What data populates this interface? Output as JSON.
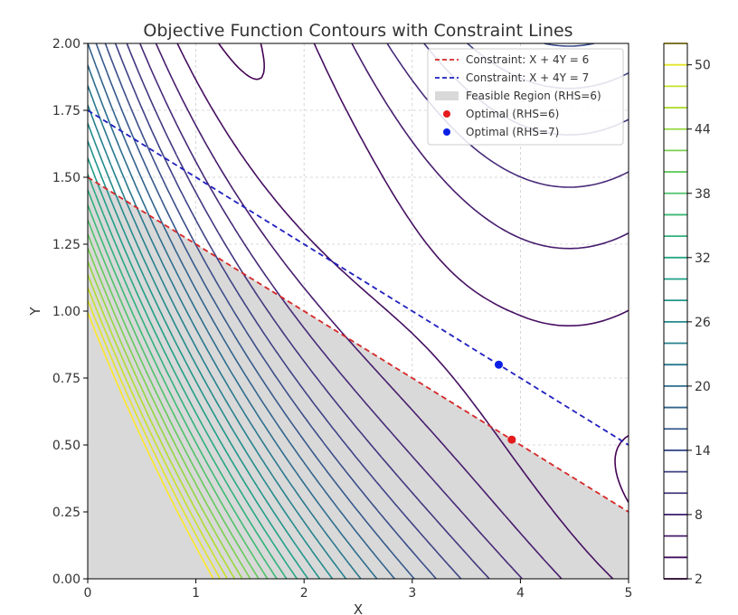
{
  "chart_data": {
    "type": "contour",
    "title": "Objective Function Contours with Constraint Lines",
    "xlabel": "X",
    "ylabel": "Y",
    "xlim": [
      0,
      5
    ],
    "ylim": [
      0,
      2
    ],
    "xticks": [
      0,
      1,
      2,
      3,
      4,
      5
    ],
    "yticks": [
      0.0,
      0.25,
      0.5,
      0.75,
      1.0,
      1.25,
      1.5,
      1.75,
      2.0
    ],
    "ytick_labels": [
      "0.00",
      "0.25",
      "0.50",
      "0.75",
      "1.00",
      "1.25",
      "1.50",
      "1.75",
      "2.00"
    ],
    "grid": true,
    "legend_position": "top-right",
    "contour_levels": [
      2,
      4,
      6,
      8,
      10,
      12,
      14,
      16,
      18,
      20,
      22,
      24,
      26,
      28,
      30,
      32,
      34,
      36,
      38,
      40,
      42,
      44,
      46,
      48,
      50,
      52
    ],
    "colorbar": {
      "min": 2,
      "max": 52,
      "ticks": [
        2,
        8,
        14,
        20,
        26,
        32,
        38,
        44,
        50
      ],
      "colormap": "viridis"
    },
    "constraints": [
      {
        "label": "Constraint: X + 4Y = 6",
        "a": 1,
        "b": 4,
        "rhs": 6,
        "color": "#d62728",
        "style": "dashed"
      },
      {
        "label": "Constraint: X + 4Y = 7",
        "a": 1,
        "b": 4,
        "rhs": 7,
        "color": "#1f1fbf",
        "style": "dashed"
      }
    ],
    "feasible_region": {
      "label": "Feasible Region (RHS=6)",
      "color": "#d9d9d9"
    },
    "optimal_points": [
      {
        "label": "Optimal (RHS=6)",
        "x": 3.92,
        "y": 0.52,
        "color": "#e41a1c"
      },
      {
        "label": "Optimal (RHS=7)",
        "x": 3.8,
        "y": 0.8,
        "color": "#0a1fe6"
      }
    ]
  }
}
